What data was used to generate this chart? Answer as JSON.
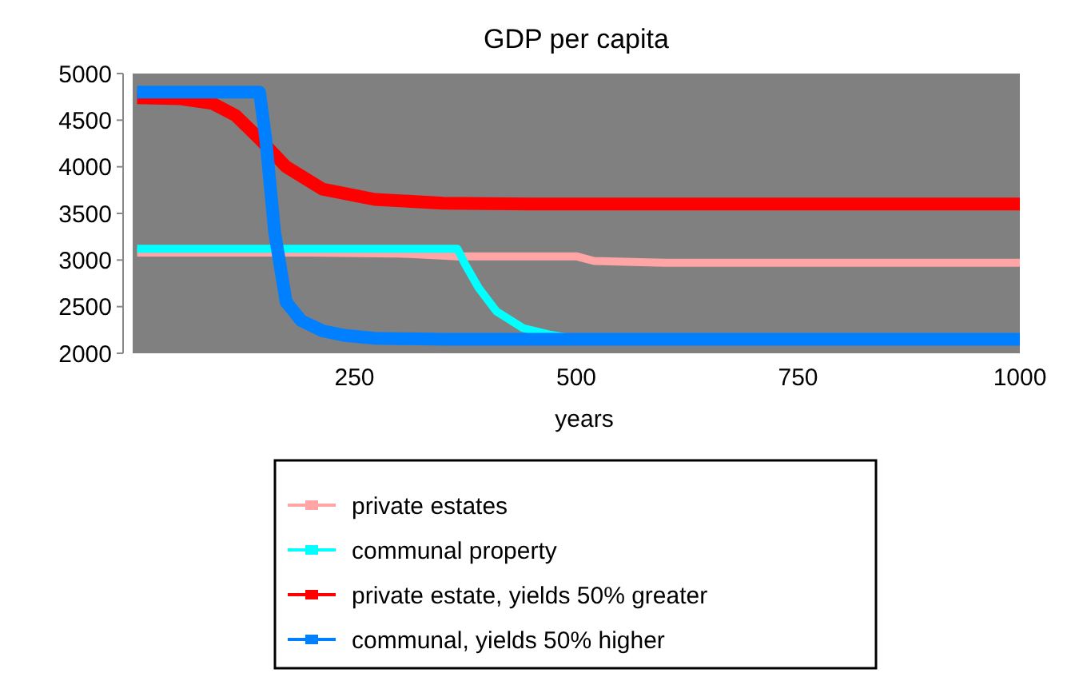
{
  "chart_data": {
    "type": "line",
    "title": "GDP per capita",
    "xlabel": "years",
    "xlim": [
      0,
      1000
    ],
    "xticks": [
      250,
      500,
      750,
      1000
    ],
    "ylim": [
      2000,
      5000
    ],
    "yticks": [
      2000,
      2500,
      3000,
      3500,
      4000,
      4500,
      5000
    ],
    "grid": false,
    "legend": "bottom",
    "series": [
      {
        "name": "private estates",
        "color": "#ffa5a5",
        "x": [
          5,
          100,
          200,
          300,
          366,
          420,
          500,
          520,
          600,
          700,
          800,
          900,
          1000
        ],
        "values": [
          3080,
          3080,
          3080,
          3070,
          3040,
          3040,
          3040,
          2990,
          2970,
          2970,
          2970,
          2970,
          2970
        ]
      },
      {
        "name": "communal property",
        "color": "#00ffff",
        "x": [
          5,
          100,
          200,
          300,
          366,
          375,
          390,
          410,
          440,
          470,
          490
        ],
        "values": [
          3120,
          3120,
          3120,
          3120,
          3120,
          2950,
          2700,
          2450,
          2270,
          2200,
          2170
        ]
      },
      {
        "name": "private estate, yields 50% greater",
        "color": "#ff0000",
        "x": [
          5,
          54,
          90,
          116,
          143,
          173,
          214,
          273,
          350,
          450,
          600,
          800,
          1000
        ],
        "values": [
          4740,
          4730,
          4680,
          4550,
          4300,
          4000,
          3760,
          3650,
          3610,
          3600,
          3600,
          3600,
          3600
        ]
      },
      {
        "name": "communal, yields 50% higher",
        "color": "#0080ff",
        "x": [
          5,
          100,
          143,
          150,
          160,
          173,
          190,
          214,
          240,
          273,
          350,
          500,
          700,
          1000
        ],
        "values": [
          4800,
          4800,
          4800,
          4300,
          3300,
          2550,
          2350,
          2240,
          2190,
          2160,
          2150,
          2150,
          2150,
          2150
        ]
      }
    ]
  }
}
